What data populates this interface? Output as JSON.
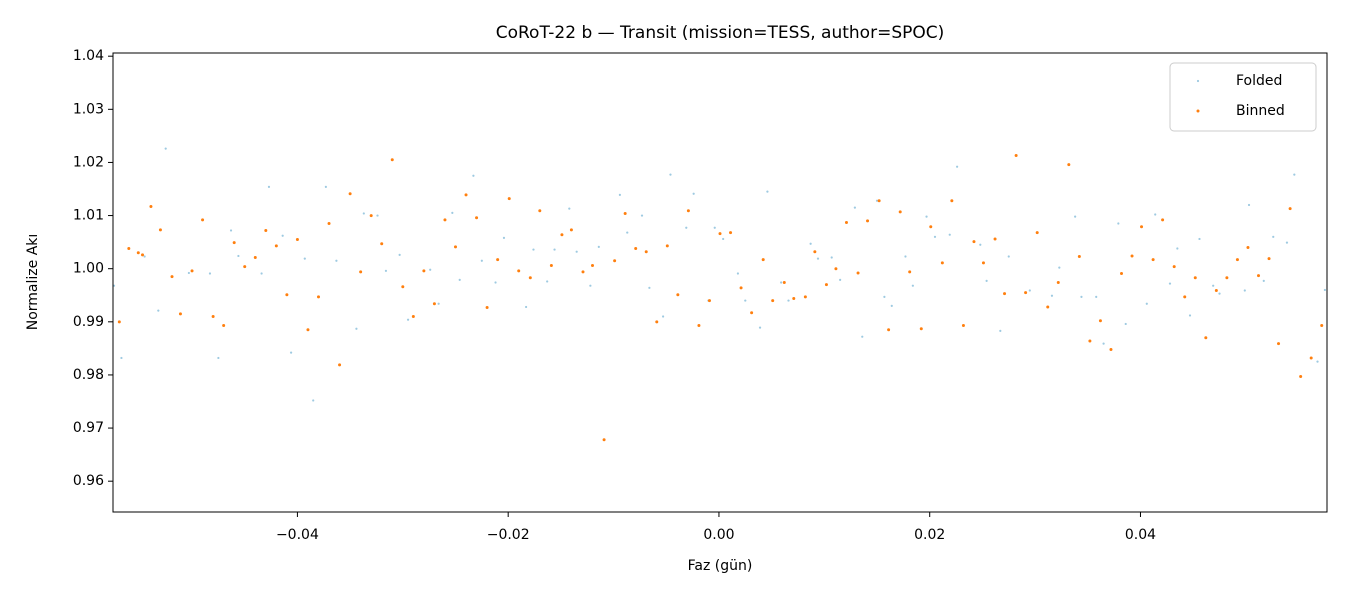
{
  "chart_data": {
    "type": "scatter",
    "title": "CoRoT-22 b — Transit (mission=TESS, author=SPOC)",
    "xlabel": "Faz (gün)",
    "ylabel": "Normalize Akı",
    "xlim": [
      -0.0575,
      0.0577
    ],
    "ylim": [
      0.9542,
      1.0406
    ],
    "xticks": [
      {
        "value": -0.04,
        "label": "−0.04"
      },
      {
        "value": -0.02,
        "label": "−0.02"
      },
      {
        "value": 0,
        "label": "0.00"
      },
      0.02,
      0.04
    ],
    "yticks": [
      0.96,
      0.97,
      0.98,
      0.99,
      {
        "value": 1,
        "label": "1.00"
      },
      1.01,
      1.02,
      1.03,
      1.04
    ],
    "grid": false,
    "legend": "upper right",
    "series": [
      {
        "name": "Folded",
        "color": "#9ecae1",
        "x": [
          -0.0574,
          -0.0567,
          -0.0545,
          -0.0532,
          -0.0525,
          -0.0503,
          -0.0483,
          -0.0475,
          -0.0463,
          -0.0456,
          -0.0434,
          -0.0427,
          -0.0414,
          -0.0406,
          -0.0393,
          -0.0385,
          -0.0373,
          -0.0363,
          -0.0344,
          -0.0337,
          -0.0324,
          -0.0316,
          -0.0303,
          -0.0295,
          -0.0274,
          -0.0266,
          -0.0253,
          -0.0246,
          -0.0233,
          -0.0225,
          -0.0212,
          -0.0204,
          -0.0183,
          -0.0176,
          -0.0163,
          -0.0156,
          -0.0142,
          -0.0135,
          -0.0122,
          -0.0114,
          -0.0094,
          -0.0087,
          -0.0073,
          -0.0066,
          -0.0053,
          -0.0046,
          -0.0031,
          -0.0024,
          -0.001,
          -0.0004,
          0.0004,
          0.0018,
          0.0025,
          0.0039,
          0.0046,
          0.0059,
          0.0066,
          0.0087,
          0.0094,
          0.0107,
          0.0115,
          0.0129,
          0.0136,
          0.015,
          0.0157,
          0.0164,
          0.0177,
          0.0184,
          0.0197,
          0.0205,
          0.0219,
          0.0226,
          0.0248,
          0.0254,
          0.0267,
          0.0275,
          0.0295,
          0.0316,
          0.0323,
          0.0338,
          0.0344,
          0.0358,
          0.0365,
          0.0379,
          0.0386,
          0.0406,
          0.0414,
          0.0428,
          0.0435,
          0.0447,
          0.0456,
          0.0469,
          0.0475,
          0.0499,
          0.0503,
          0.0517,
          0.0526,
          0.0539,
          0.0546,
          0.0568,
          0.0575
        ],
        "values": [
          0.9968,
          0.9832,
          1.0023,
          0.9921,
          1.0226,
          0.9992,
          0.9991,
          0.9832,
          1.0072,
          1.0024,
          0.9991,
          1.0154,
          1.0062,
          0.9842,
          1.0019,
          0.9752,
          1.0154,
          1.0015,
          0.9887,
          1.0104,
          1.01,
          0.9996,
          1.0026,
          0.9904,
          0.9998,
          0.9934,
          1.0105,
          0.9979,
          1.0175,
          1.0015,
          0.9974,
          1.0058,
          0.9928,
          1.0036,
          0.9976,
          1.0036,
          1.0113,
          1.0032,
          0.9968,
          1.0041,
          1.0139,
          1.0068,
          1.01,
          0.9964,
          0.991,
          1.0177,
          1.0077,
          1.0141,
          0.994,
          1.0077,
          1.0056,
          0.9991,
          0.994,
          0.9889,
          1.0145,
          0.9974,
          0.994,
          1.0047,
          1.0019,
          1.0021,
          0.9979,
          1.0115,
          0.9872,
          1.0128,
          0.9947,
          0.993,
          1.0023,
          0.9968,
          1.0098,
          1.006,
          1.0064,
          1.0192,
          1.0045,
          0.9977,
          0.9883,
          1.0023,
          0.9959,
          0.9949,
          1.0002,
          1.0098,
          0.9947,
          0.9947,
          0.9859,
          1.0085,
          0.9896,
          0.9934,
          1.0102,
          0.9972,
          1.0038,
          0.9912,
          1.0056,
          0.9968,
          0.9953,
          0.9959,
          1.012,
          0.9977,
          1.006,
          1.0049,
          1.0177,
          0.9825,
          0.996
        ]
      },
      {
        "name": "Binned",
        "color": "#ff7f0e",
        "x": [
          -0.0569,
          -0.056,
          -0.0551,
          -0.0547,
          -0.0539,
          -0.053,
          -0.0519,
          -0.0511,
          -0.05,
          -0.049,
          -0.048,
          -0.047,
          -0.046,
          -0.045,
          -0.044,
          -0.043,
          -0.042,
          -0.041,
          -0.04,
          -0.039,
          -0.038,
          -0.037,
          -0.036,
          -0.035,
          -0.034,
          -0.033,
          -0.032,
          -0.031,
          -0.03,
          -0.029,
          -0.028,
          -0.027,
          -0.026,
          -0.025,
          -0.024,
          -0.023,
          -0.022,
          -0.021,
          -0.0199,
          -0.019,
          -0.0179,
          -0.017,
          -0.0159,
          -0.0149,
          -0.014,
          -0.0129,
          -0.012,
          -0.0109,
          -0.0099,
          -0.0089,
          -0.0079,
          -0.0069,
          -0.0059,
          -0.0049,
          -0.0039,
          -0.0029,
          -0.0019,
          -0.0009,
          0.0001,
          0.0011,
          0.0021,
          0.0031,
          0.0042,
          0.0051,
          0.0062,
          0.0071,
          0.0082,
          0.0091,
          0.0102,
          0.0111,
          0.0121,
          0.0132,
          0.0141,
          0.0152,
          0.0161,
          0.0172,
          0.0181,
          0.0192,
          0.0201,
          0.0212,
          0.0221,
          0.0232,
          0.0242,
          0.0251,
          0.0262,
          0.0271,
          0.0282,
          0.0291,
          0.0302,
          0.0312,
          0.0322,
          0.0332,
          0.0342,
          0.0352,
          0.0362,
          0.0372,
          0.0382,
          0.0392,
          0.0401,
          0.0412,
          0.0421,
          0.0432,
          0.0442,
          0.0452,
          0.0462,
          0.0472,
          0.0482,
          0.0492,
          0.0502,
          0.0512,
          0.0522,
          0.0531,
          0.0542,
          0.0552,
          0.0562,
          0.0572
        ],
        "values": [
          0.99,
          1.0038,
          1.003,
          1.0026,
          1.0117,
          1.0073,
          0.9985,
          0.9915,
          0.9996,
          1.0092,
          0.991,
          0.9893,
          1.0049,
          1.0004,
          1.0021,
          1.0072,
          1.0043,
          0.9951,
          1.0055,
          0.9885,
          0.9947,
          1.0085,
          0.9819,
          1.0141,
          0.9994,
          1.01,
          1.0047,
          1.0205,
          0.9966,
          0.991,
          0.9996,
          0.9934,
          1.0092,
          1.0041,
          1.0139,
          1.0096,
          0.9927,
          1.0017,
          1.0132,
          0.9996,
          0.9983,
          1.0109,
          1.0006,
          1.0064,
          1.0073,
          0.9994,
          1.0006,
          0.9678,
          1.0015,
          1.0104,
          1.0038,
          1.0032,
          0.99,
          1.0043,
          0.9951,
          1.0109,
          0.9893,
          0.994,
          1.0066,
          1.0068,
          0.9964,
          0.9917,
          1.0017,
          0.994,
          0.9974,
          0.9944,
          0.9947,
          1.0032,
          0.997,
          1.0,
          1.0087,
          0.9992,
          1.009,
          1.0128,
          0.9885,
          1.0107,
          0.9994,
          0.9887,
          1.0079,
          1.0011,
          1.0128,
          0.9893,
          1.0051,
          1.0011,
          1.0056,
          0.9953,
          1.0213,
          0.9955,
          1.0068,
          0.9928,
          0.9974,
          1.0196,
          1.0023,
          0.9864,
          0.9902,
          0.9848,
          0.9991,
          1.0024,
          1.0079,
          1.0017,
          1.0092,
          1.0004,
          0.9947,
          0.9983,
          0.987,
          0.9959,
          0.9983,
          1.0017,
          1.004,
          0.9987,
          1.0019,
          0.9859,
          1.0113,
          0.9797,
          0.9832,
          0.9893
        ]
      }
    ]
  }
}
